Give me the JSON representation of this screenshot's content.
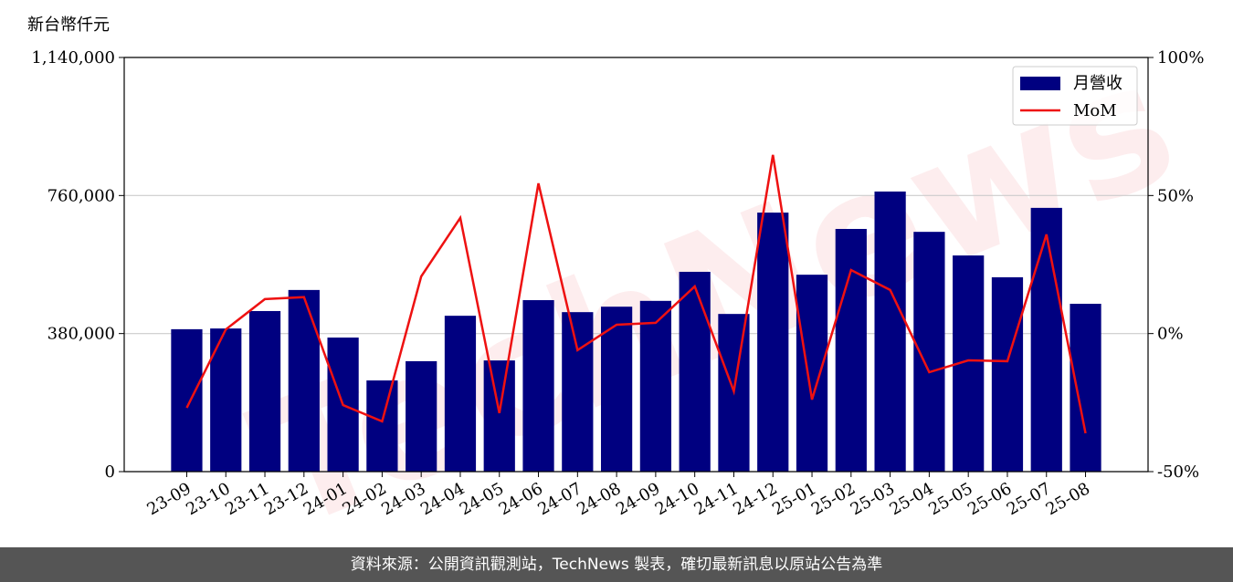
{
  "chart_data": {
    "type": "bar-line",
    "watermark": "TechNews",
    "y_label": "新台幣仟元",
    "categories": [
      "23-09",
      "23-10",
      "23-11",
      "23-12",
      "24-01",
      "24-02",
      "24-03",
      "24-04",
      "24-05",
      "24-06",
      "24-07",
      "24-08",
      "24-09",
      "24-10",
      "24-11",
      "24-12",
      "25-01",
      "25-02",
      "25-03",
      "25-04",
      "25-05",
      "25-06",
      "25-07",
      "25-08"
    ],
    "series": [
      {
        "name": "月營收",
        "type": "bar",
        "color": "#000080",
        "values": [
          392000,
          394000,
          442000,
          500000,
          369000,
          251000,
          304000,
          429000,
          306000,
          472000,
          439000,
          454000,
          470000,
          550000,
          434000,
          713000,
          542000,
          668000,
          771000,
          660000,
          595000,
          535000,
          726000,
          462000
        ]
      },
      {
        "name": "MoM",
        "type": "line",
        "axis": "y2",
        "color": "#ee1111",
        "values": [
          -26.9,
          1.5,
          12.5,
          13.2,
          -25.9,
          -31.8,
          20.7,
          41.9,
          -28.8,
          54.4,
          -6,
          3.2,
          3.9,
          17.1,
          -20.9,
          64.7,
          -23.9,
          23,
          15.8,
          -14,
          -9.7,
          -10,
          35.9,
          -36.1
        ]
      }
    ],
    "ylim": [
      0,
      1140000
    ],
    "yticks": [
      0,
      {
        "value": 380000,
        "label": "380,000"
      },
      {
        "value": 760000,
        "label": "760,000"
      },
      {
        "value": 1140000,
        "label": "1,140,000"
      }
    ],
    "y2lim": [
      -50,
      100
    ],
    "y2ticks": [
      {
        "value": -50,
        "label": "-50%"
      },
      {
        "value": 0,
        "label": "0%"
      },
      {
        "value": 50,
        "label": "50%"
      },
      {
        "value": 100,
        "label": "100%"
      }
    ],
    "grid": true,
    "legend": "upper right"
  },
  "footer": "資料來源：公開資訊觀測站，TechNews 製表，確切最新訊息以原站公告為準"
}
